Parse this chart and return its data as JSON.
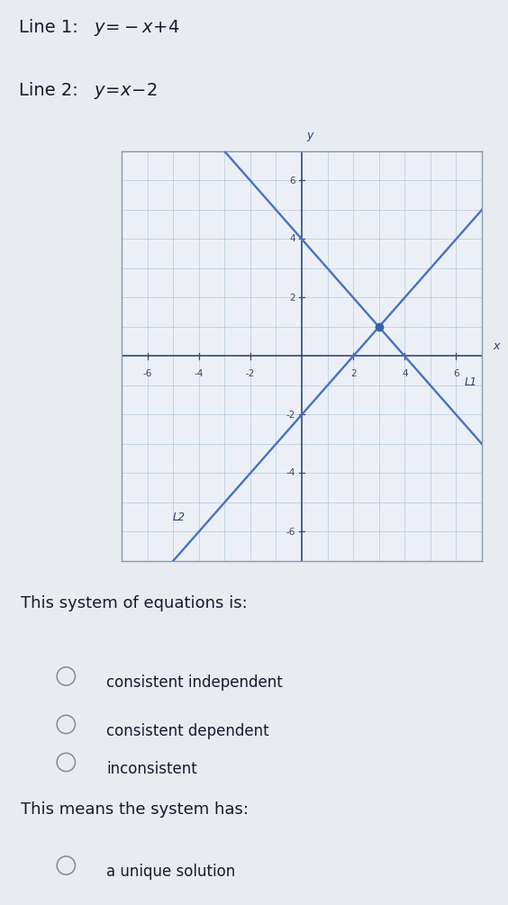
{
  "line1_label_plain": "Line 1: ",
  "line1_eq_plain": "y=⁻x+4",
  "line2_label_plain": "Line 2: ",
  "line2_eq_plain": "y=x−2",
  "line1_eq": [
    -1,
    4
  ],
  "line2_eq": [
    1,
    -2
  ],
  "x_range": [
    -7,
    7
  ],
  "y_range": [
    -7,
    7
  ],
  "axis_ticks": [
    -6,
    -4,
    -2,
    2,
    4,
    6
  ],
  "intersection": [
    3,
    1
  ],
  "line_color": "#4472C4",
  "dot_color": "#3B5FA0",
  "bg_color": "#E8EBF0",
  "graph_bg": "#ECF0F6",
  "grid_color": "#B8C8DC",
  "axis_color": "#2C3E6B",
  "tick_color": "#444466",
  "L1_label": "L1",
  "L2_label": "L2",
  "question1": "This system of equations is:",
  "options": [
    "consistent independent",
    "consistent dependent",
    "inconsistent"
  ],
  "question2": "This means the system has:",
  "answer": "a unique solution",
  "text_color": "#1A1A2E",
  "radio_color": "#888899",
  "font_size_title": 14,
  "font_size_question": 13,
  "font_size_options": 12,
  "font_size_axis": 7.5,
  "font_size_graph_label": 9
}
